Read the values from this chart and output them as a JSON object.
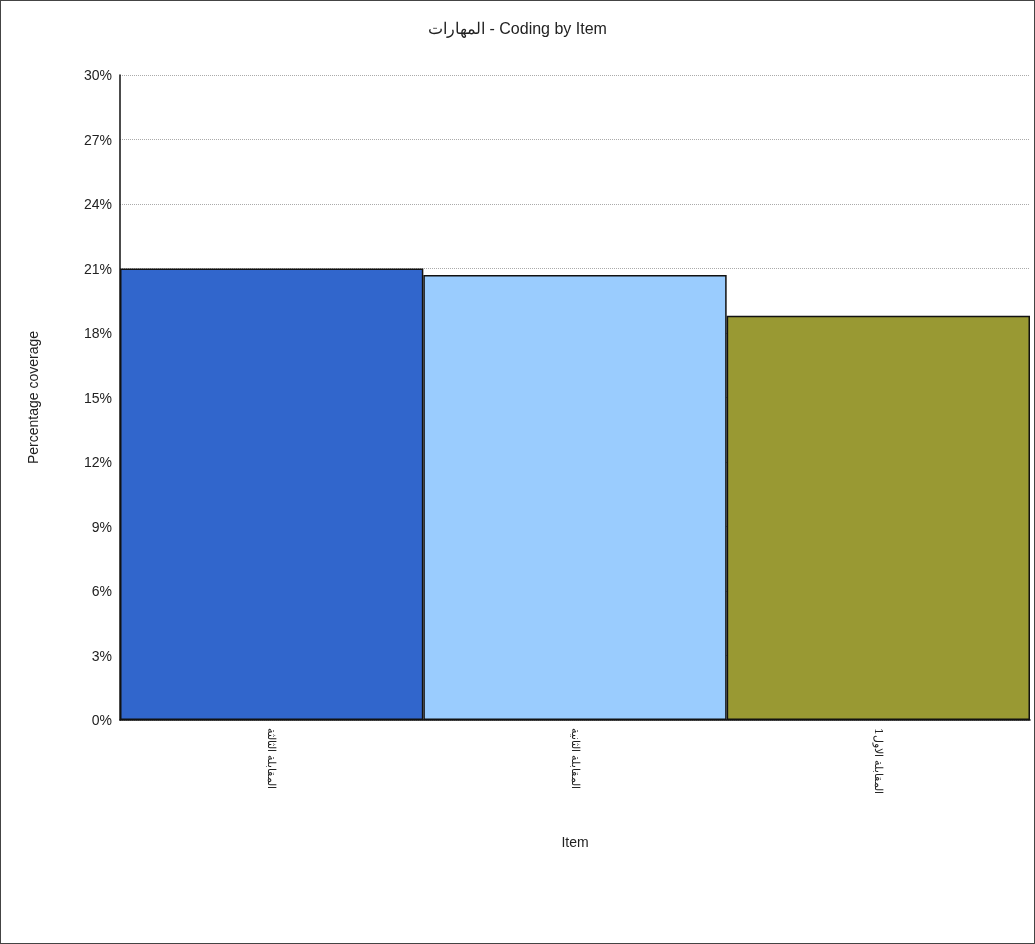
{
  "chart_data": {
    "type": "bar",
    "title": "المهارات - Coding by Item",
    "xlabel": "Item",
    "ylabel": "Percentage coverage",
    "categories": [
      "المقابلة الثالثة",
      "المقابلة الثانية",
      "المقابلة الاول1"
    ],
    "values": [
      21.0,
      20.7,
      18.8
    ],
    "colors": [
      "#3166cc",
      "#9accfe",
      "#999933"
    ],
    "ylim": [
      0,
      30
    ],
    "yticks": [
      {
        "value": 0,
        "label": "0%"
      },
      {
        "value": 3,
        "label": "3%"
      },
      {
        "value": 6,
        "label": "6%"
      },
      {
        "value": 9,
        "label": "9%"
      },
      {
        "value": 12,
        "label": "12%"
      },
      {
        "value": 15,
        "label": "15%"
      },
      {
        "value": 18,
        "label": "18%"
      },
      {
        "value": 21,
        "label": "21%"
      },
      {
        "value": 24,
        "label": "24%"
      },
      {
        "value": 27,
        "label": "27%"
      },
      {
        "value": 30,
        "label": "30%"
      }
    ],
    "grid": "y"
  }
}
